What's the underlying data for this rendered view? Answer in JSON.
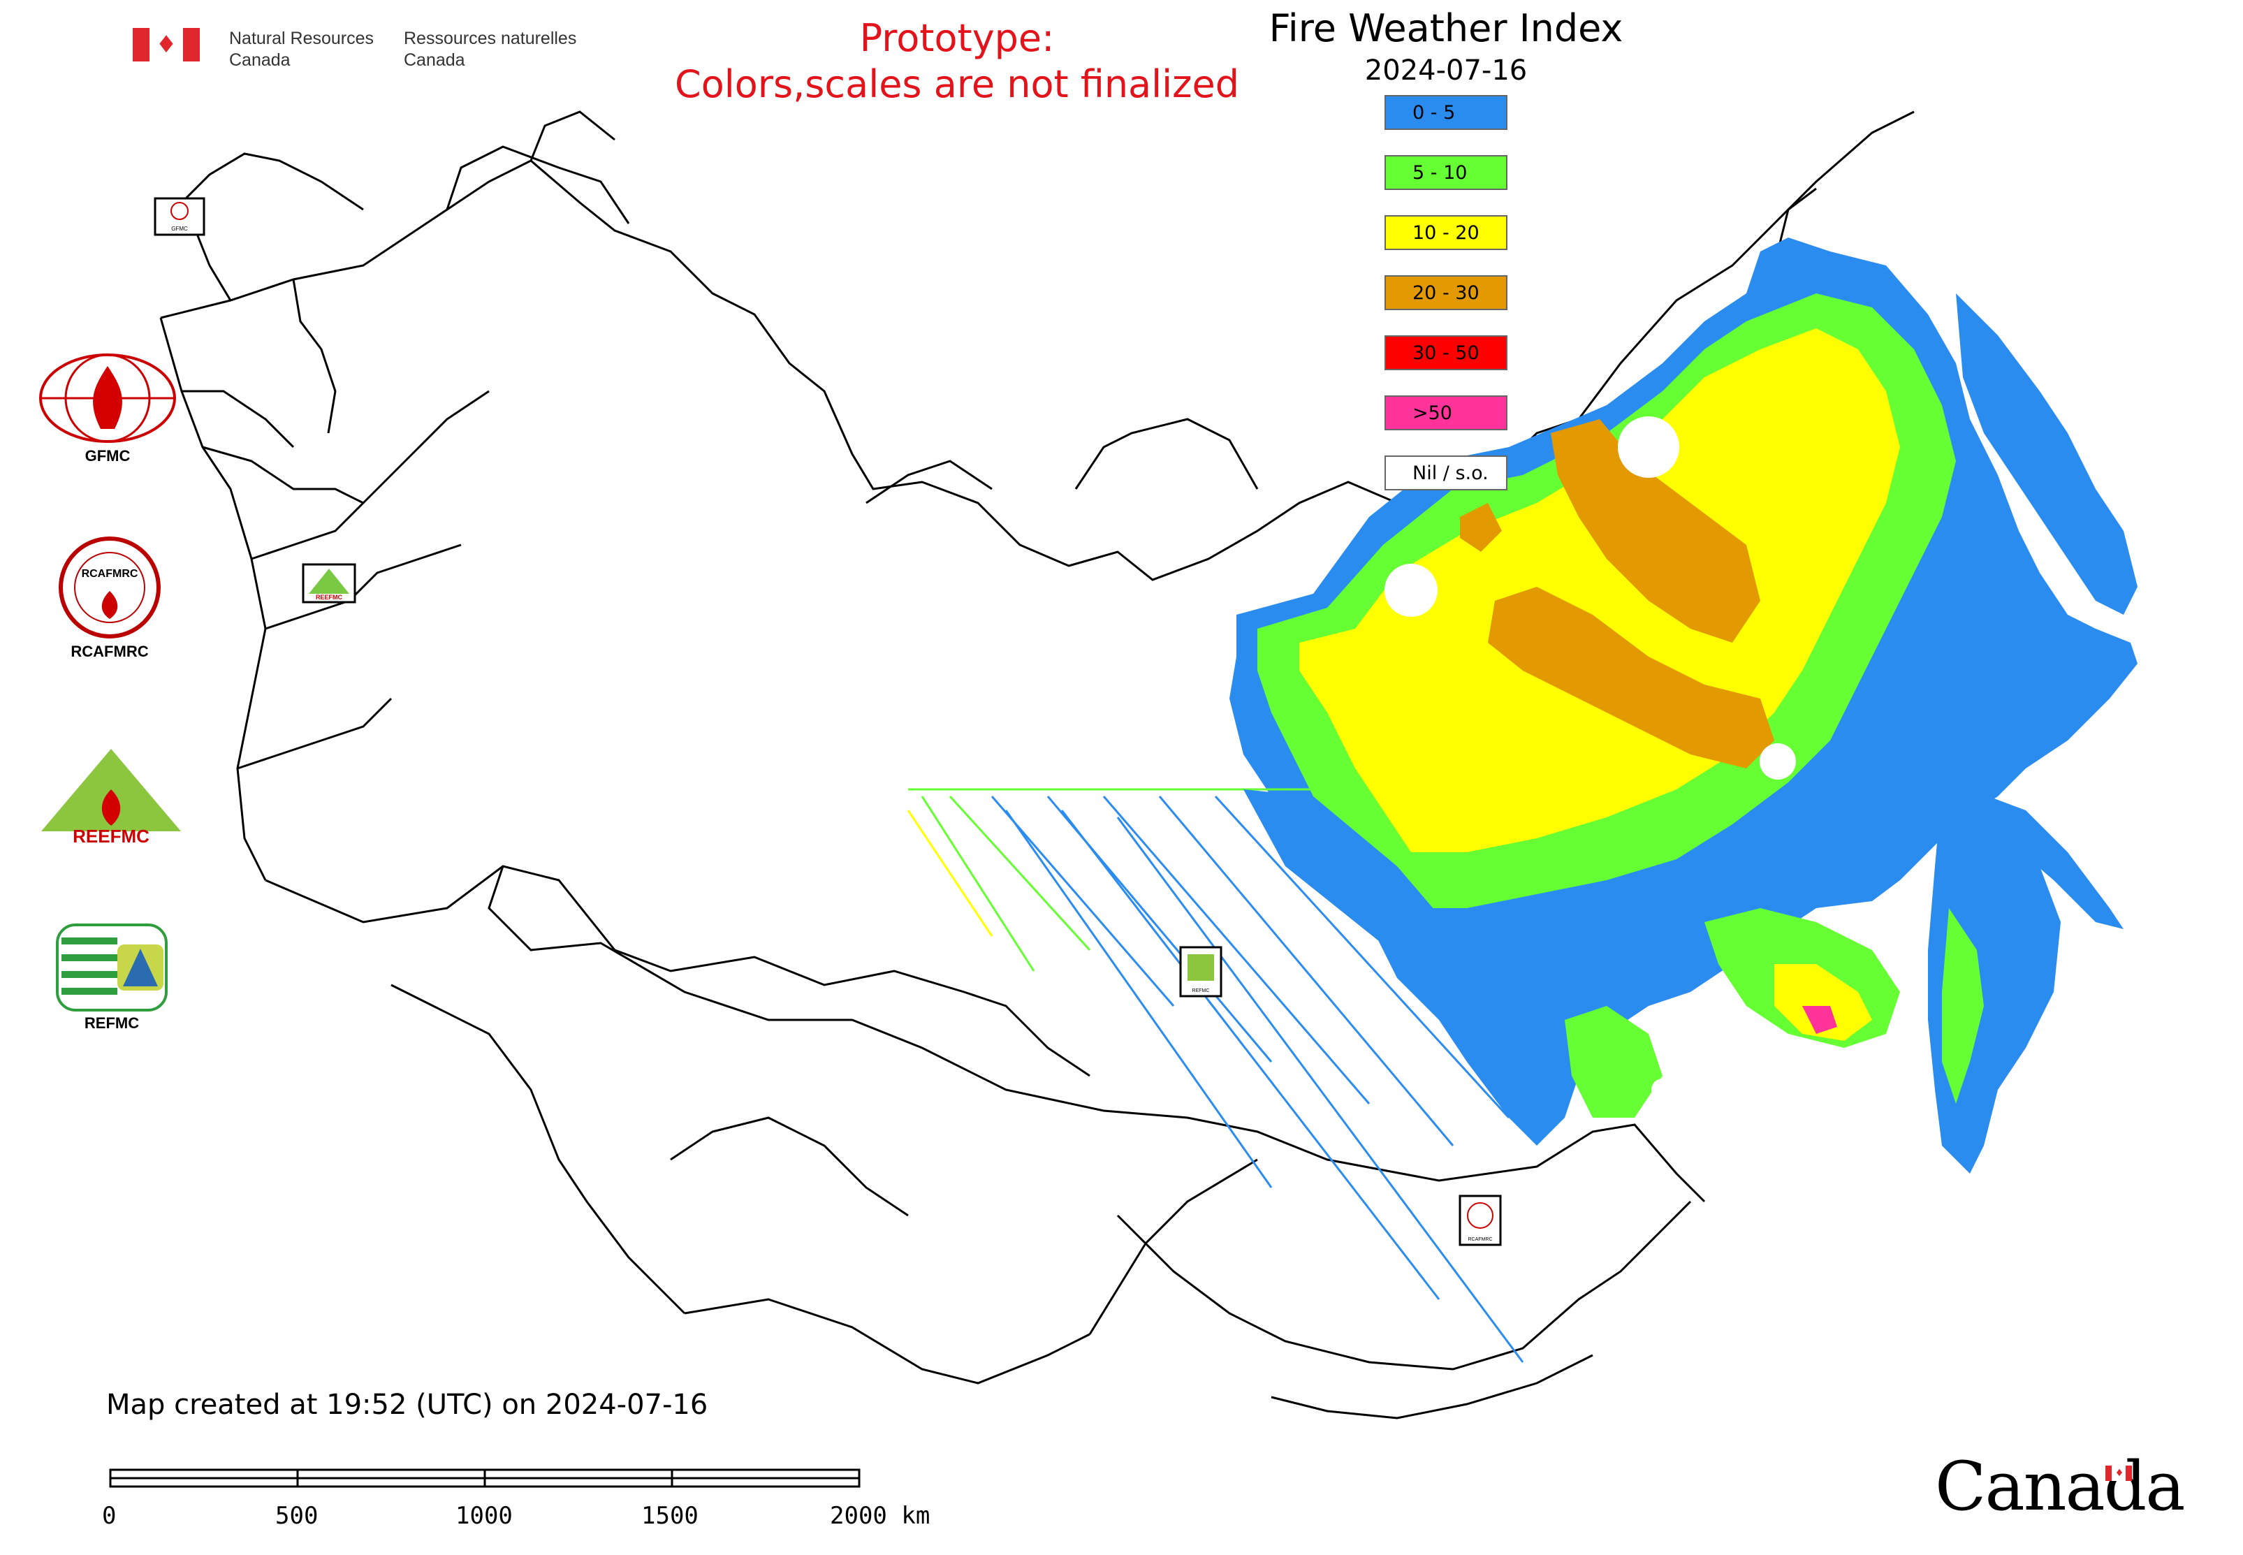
{
  "header": {
    "dept_en": [
      "Natural Resources",
      "Canada"
    ],
    "dept_fr": [
      "Ressources naturelles",
      "Canada"
    ],
    "prototype_line1": "Prototype:",
    "prototype_line2": "Colors,scales are not finalized",
    "title": "Fire Weather Index",
    "date": "2024-07-16"
  },
  "legend": [
    {
      "label": "0 - 5",
      "color": "#2b8cf0"
    },
    {
      "label": "5 - 10",
      "color": "#66ff33"
    },
    {
      "label": "10 - 20",
      "color": "#ffff00"
    },
    {
      "label": "20 - 30",
      "color": "#e29a00"
    },
    {
      "label": "30 - 50",
      "color": "#ff0000"
    },
    {
      "label": ">50",
      "color": "#ff3399"
    },
    {
      "label": "Nil / s.o.",
      "color": "#ffffff"
    }
  ],
  "logos": [
    {
      "name": "gfmc",
      "label": "GFMC"
    },
    {
      "name": "rcafmrc",
      "label": "RCAFMRC",
      "text": "RCAFMRC"
    },
    {
      "name": "reefmc",
      "label": "",
      "text": "REEFMC"
    },
    {
      "name": "refmc",
      "label": "REFMC"
    }
  ],
  "map_markers": [
    {
      "name": "gfmc",
      "label": "GFMC"
    },
    {
      "name": "reefmc",
      "label": "REEFMC"
    },
    {
      "name": "refmc",
      "label": "REFMC"
    },
    {
      "name": "rcafmrc",
      "label": "RCAFMRC"
    }
  ],
  "footer": {
    "created": "Map created at 19:52 (UTC) on 2024-07-16",
    "scale_labels": [
      "0",
      "500",
      "1000",
      "1500",
      "2000 km"
    ],
    "wordmark": "Canada"
  }
}
